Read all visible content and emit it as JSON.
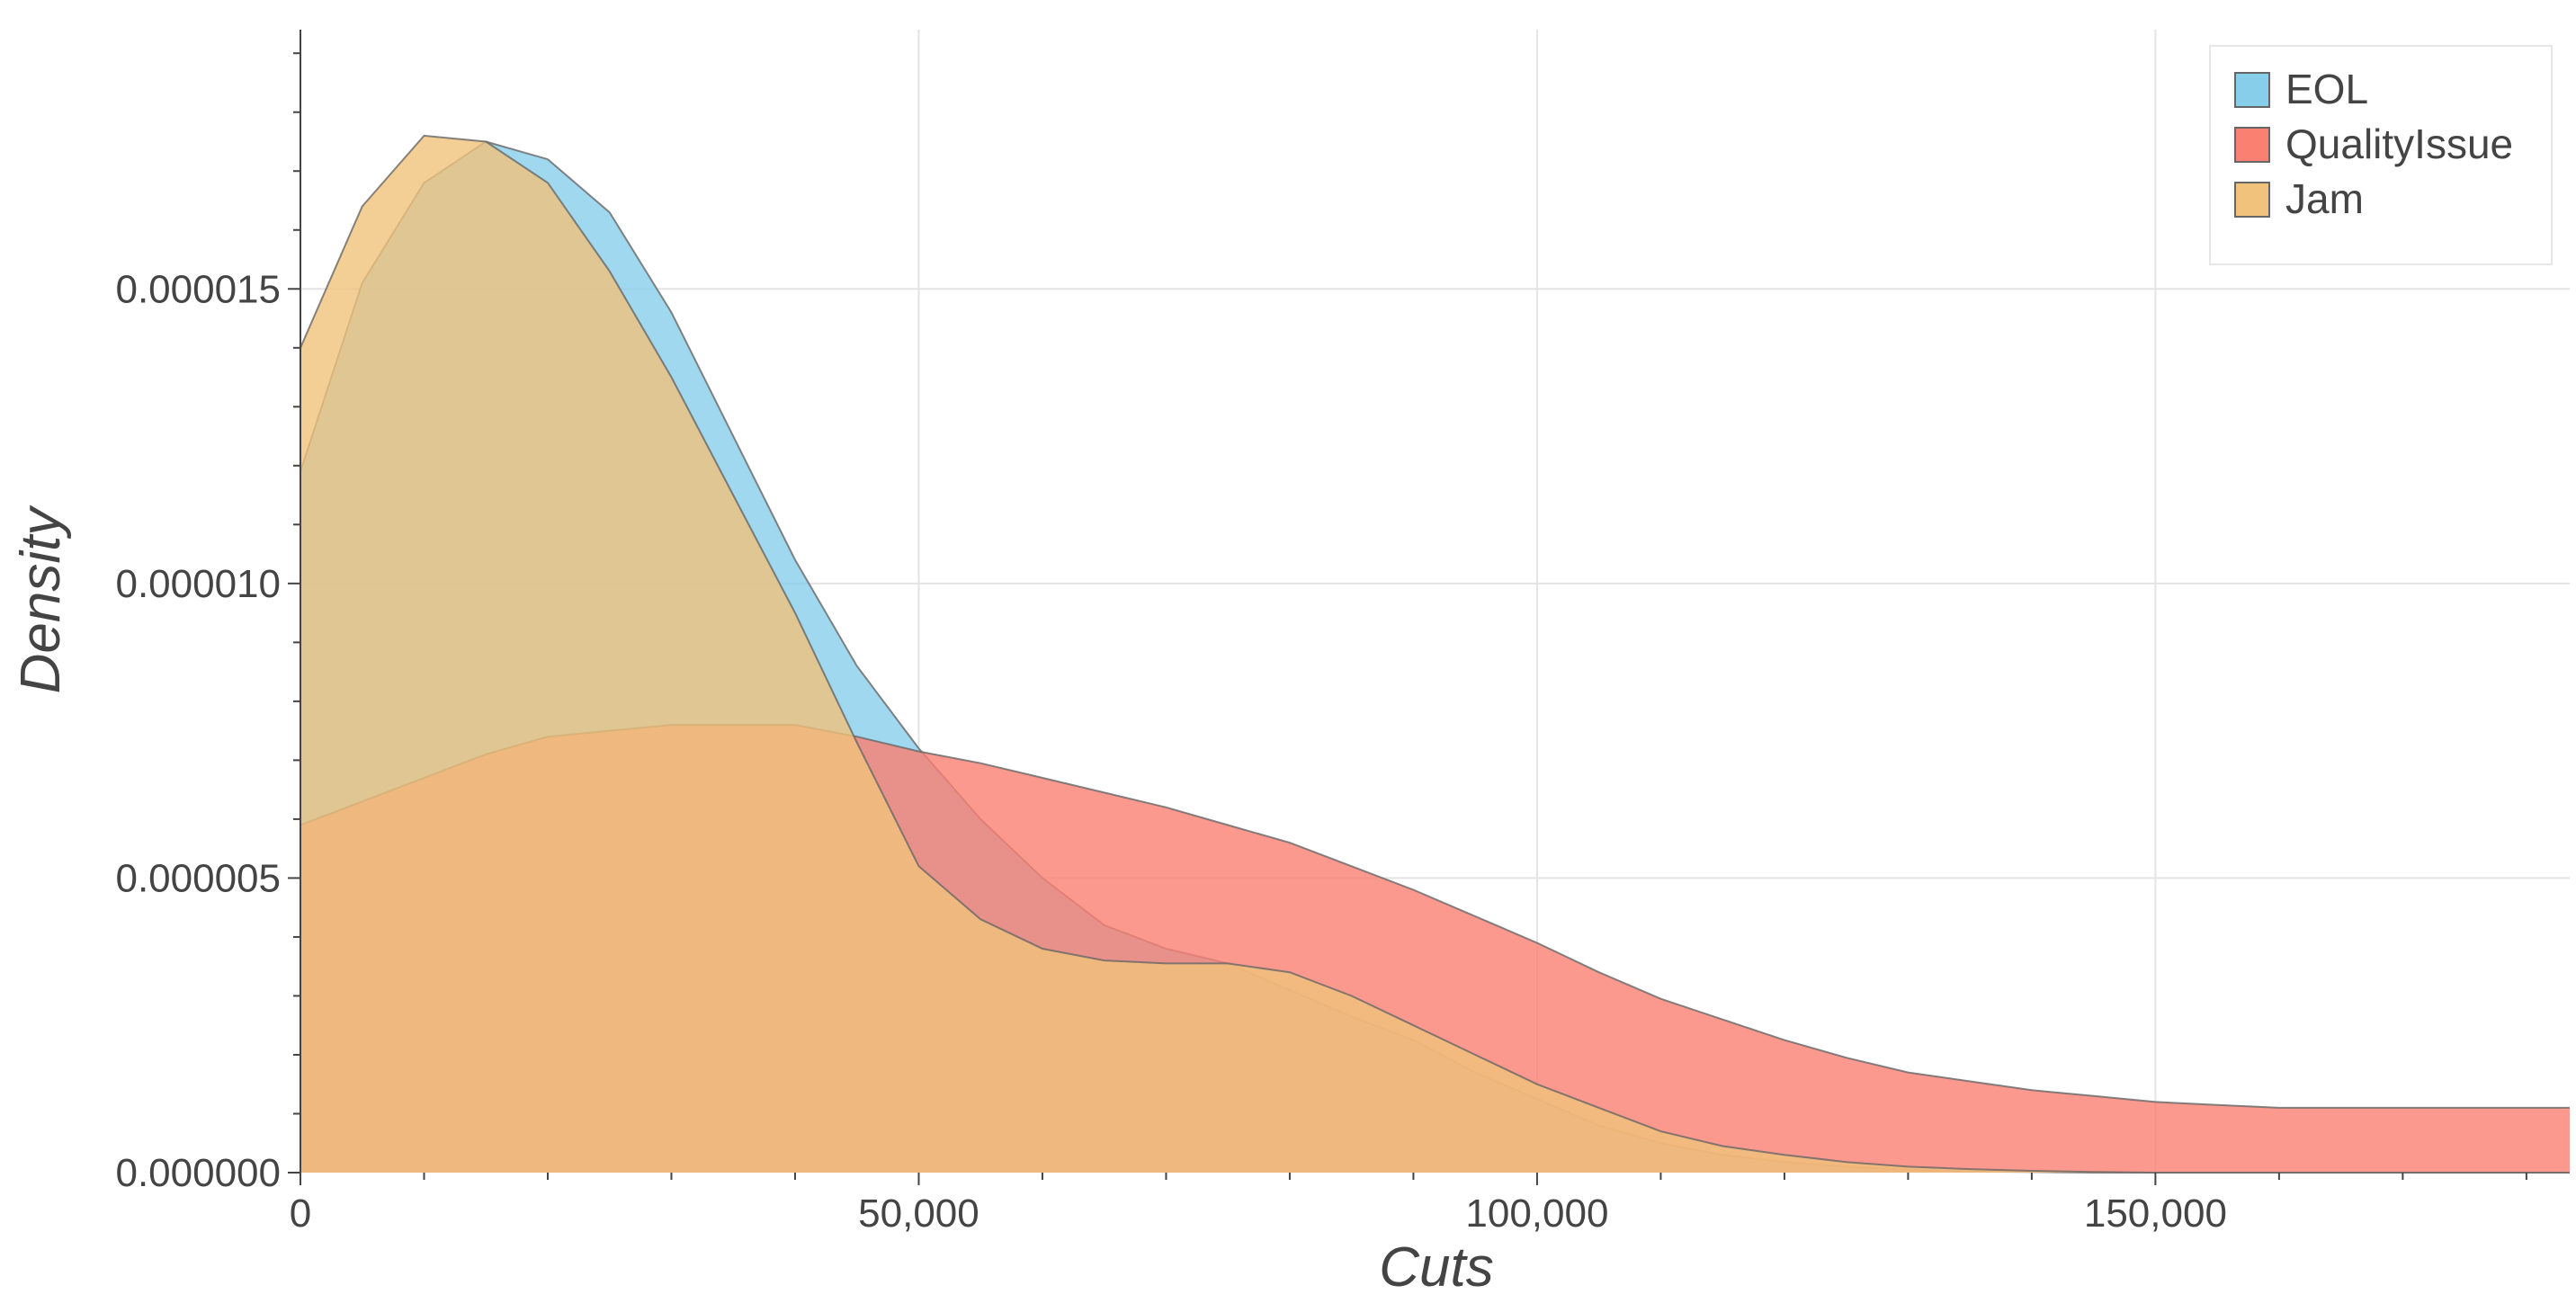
{
  "chart_data": {
    "type": "area",
    "x_label": "Cuts",
    "y_label": "Density",
    "x": [
      0,
      5000,
      10000,
      15000,
      20000,
      25000,
      30000,
      35000,
      40000,
      45000,
      50000,
      55000,
      60000,
      65000,
      70000,
      75000,
      80000,
      85000,
      90000,
      95000,
      100000,
      105000,
      110000,
      115000,
      120000,
      125000,
      130000,
      135000,
      140000,
      145000,
      150000,
      155000,
      160000,
      165000,
      170000,
      175000,
      180000,
      183500
    ],
    "series": [
      {
        "name": "EOL",
        "color": "#87CEEB",
        "values": [
          1.19e-05,
          1.51e-05,
          1.68e-05,
          1.75e-05,
          1.72e-05,
          1.63e-05,
          1.46e-05,
          1.25e-05,
          1.04e-05,
          8.6e-06,
          7.2e-06,
          6e-06,
          5e-06,
          4.2e-06,
          3.8e-06,
          3.55e-06,
          3.1e-06,
          2.65e-06,
          2.25e-06,
          1.7e-06,
          1.25e-06,
          8e-07,
          5e-07,
          3e-07,
          1.8e-07,
          1e-07,
          5e-08,
          2e-08,
          1e-08,
          0,
          0,
          0,
          0,
          0,
          0,
          0,
          0,
          0
        ]
      },
      {
        "name": "QualityIssue",
        "color": "#FA8072",
        "values": [
          5.9e-06,
          6.3e-06,
          6.7e-06,
          7.1e-06,
          7.4e-06,
          7.5e-06,
          7.6e-06,
          7.6e-06,
          7.6e-06,
          7.4e-06,
          7.15e-06,
          6.95e-06,
          6.7e-06,
          6.45e-06,
          6.2e-06,
          5.9e-06,
          5.6e-06,
          5.2e-06,
          4.8e-06,
          4.35e-06,
          3.9e-06,
          3.4e-06,
          2.95e-06,
          2.6e-06,
          2.25e-06,
          1.95e-06,
          1.7e-06,
          1.55e-06,
          1.4e-06,
          1.3e-06,
          1.2e-06,
          1.15e-06,
          1.1e-06,
          1.1e-06,
          1.1e-06,
          1.1e-06,
          1.1e-06,
          1.1e-06
        ]
      },
      {
        "name": "Jam",
        "color": "#F0C27B",
        "values": [
          1.4e-05,
          1.64e-05,
          1.76e-05,
          1.75e-05,
          1.68e-05,
          1.53e-05,
          1.35e-05,
          1.15e-05,
          9.5e-06,
          7.3e-06,
          5.2e-06,
          4.3e-06,
          3.8e-06,
          3.6e-06,
          3.55e-06,
          3.55e-06,
          3.4e-06,
          3e-06,
          2.5e-06,
          2e-06,
          1.5e-06,
          1.1e-06,
          7e-07,
          4.5e-07,
          3e-07,
          1.8e-07,
          1e-07,
          6e-08,
          3e-08,
          1e-08,
          0,
          0,
          0,
          0,
          0,
          0,
          0,
          0
        ]
      }
    ],
    "xlim": [
      0,
      183500
    ],
    "ylim": [
      0,
      1.94e-05
    ],
    "xticks": [
      {
        "value": 0,
        "label": "0"
      },
      {
        "value": 50000,
        "label": "50,000"
      },
      {
        "value": 100000,
        "label": "100,000"
      },
      {
        "value": 150000,
        "label": "150,000"
      }
    ],
    "xminorticks": [
      10000,
      20000,
      30000,
      40000,
      60000,
      70000,
      80000,
      90000,
      110000,
      120000,
      130000,
      140000,
      160000,
      170000,
      180000
    ],
    "yticks": [
      {
        "value": 0,
        "label": "0.000000"
      },
      {
        "value": 5e-06,
        "label": "0.000005"
      },
      {
        "value": 1e-05,
        "label": "0.000010"
      },
      {
        "value": 1.5e-05,
        "label": "0.000015"
      }
    ],
    "yminorticks": [
      1e-06,
      2e-06,
      3e-06,
      4e-06,
      6e-06,
      7e-06,
      8e-06,
      9e-06,
      1.1e-05,
      1.2e-05,
      1.3e-05,
      1.4e-05,
      1.6e-05,
      1.7e-05,
      1.8e-05,
      1.9e-05
    ],
    "grid": true,
    "legend": "upper right",
    "fill_opacity": 0.8
  }
}
